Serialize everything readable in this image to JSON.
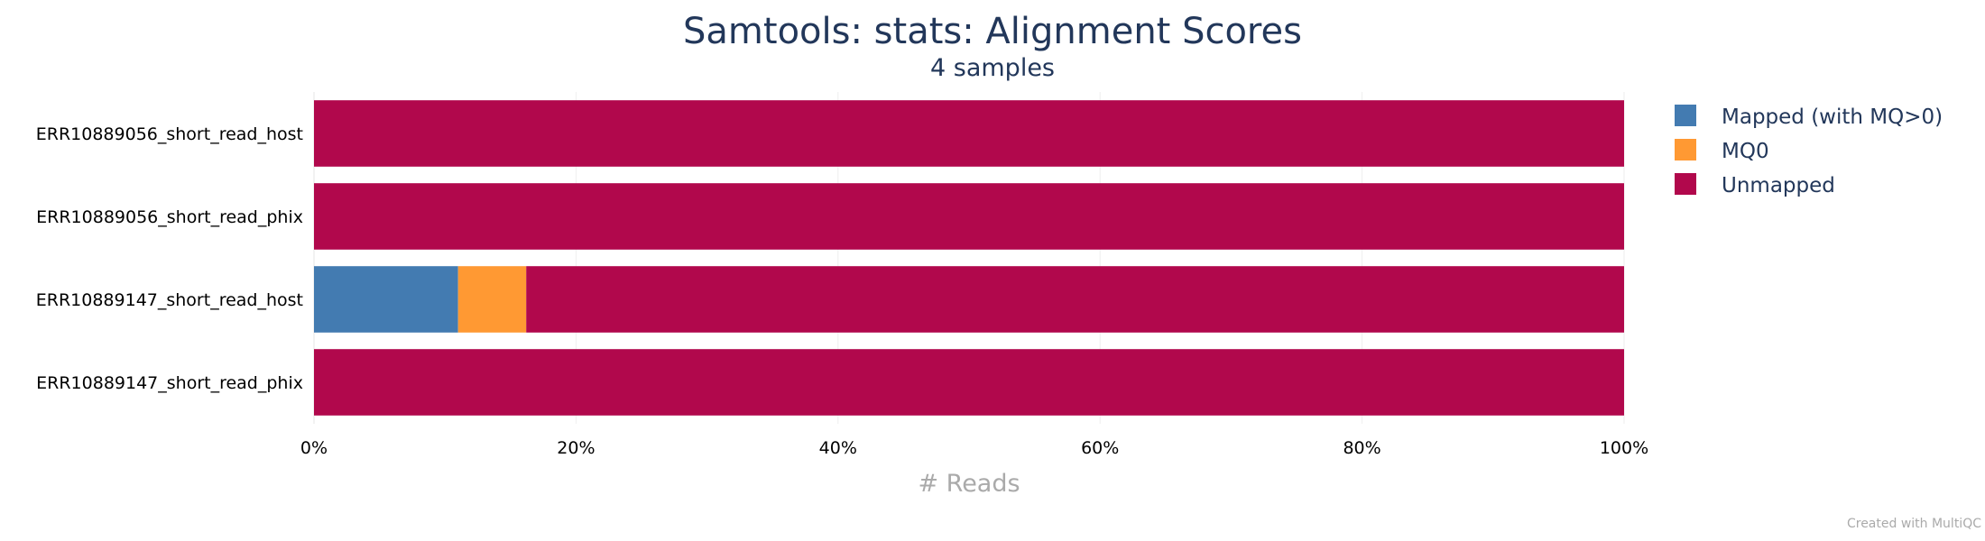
{
  "chart_data": {
    "type": "bar",
    "orientation": "horizontal",
    "stacked": true,
    "normalized": true,
    "title": "Samtools: stats: Alignment Scores",
    "subtitle": "4 samples",
    "xlabel": "# Reads",
    "ylabel": "",
    "xlim": [
      0,
      100
    ],
    "x_tick_labels": [
      "0%",
      "20%",
      "40%",
      "60%",
      "80%",
      "100%"
    ],
    "x_tick_values": [
      0,
      20,
      40,
      60,
      80,
      100
    ],
    "grid": true,
    "legend_position": "top-right",
    "categories": [
      "ERR10889056_short_read_host",
      "ERR10889056_short_read_phix",
      "ERR10889147_short_read_host",
      "ERR10889147_short_read_phix"
    ],
    "series": [
      {
        "name": "Mapped (with MQ>0)",
        "color": "#437bb1",
        "values": [
          0,
          0,
          11.0,
          0
        ]
      },
      {
        "name": "MQ0",
        "color": "#ff9933",
        "values": [
          0,
          0,
          5.2,
          0
        ]
      },
      {
        "name": "Unmapped",
        "color": "#b1084c",
        "values": [
          100,
          100,
          83.8,
          100
        ]
      }
    ]
  },
  "credit": "Created with MultiQC"
}
